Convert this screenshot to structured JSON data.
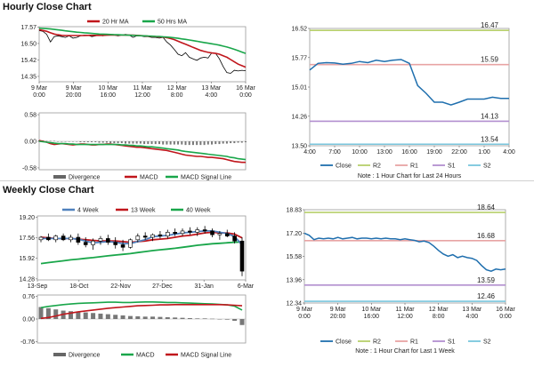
{
  "sections": {
    "hourly_title": "Hourly Close Chart",
    "weekly_title": "Weekly Close Chart"
  },
  "chart_data": [
    {
      "id": "hourly_price",
      "type": "line",
      "title": "",
      "y_ticks": [
        "17.57",
        "16.50",
        "15.42",
        "14.35"
      ],
      "ylim": [
        14.0,
        17.6
      ],
      "x_ticks": [
        [
          "9 Mar",
          "0:00"
        ],
        [
          "9 Mar",
          "20:00"
        ],
        [
          "10 Mar",
          "16:00"
        ],
        [
          "11 Mar",
          "12:00"
        ],
        [
          "12 Mar",
          "8:00"
        ],
        [
          "13 Mar",
          "4:00"
        ],
        [
          "16 Mar",
          "0:00"
        ]
      ],
      "legend": [
        "20 Hr MA",
        "50 Hrs MA"
      ],
      "series": [
        {
          "name": "Close",
          "color": "#000000",
          "values": [
            17.35,
            17.3,
            17.1,
            16.6,
            16.95,
            17.0,
            16.95,
            16.9,
            17.0,
            16.85,
            16.9,
            17.0,
            17.05,
            17.05,
            16.95,
            17.0,
            17.05,
            17.0,
            17.1,
            17.1,
            17.05,
            17.0,
            17.05,
            17.1,
            17.05,
            16.9,
            17.0,
            17.0,
            16.95,
            16.95,
            16.9,
            16.9,
            16.85,
            16.9,
            16.6,
            16.4,
            16.1,
            15.8,
            15.7,
            15.9,
            15.6,
            15.5,
            15.4,
            15.55,
            15.6,
            15.55,
            15.9,
            15.85,
            15.5,
            15.0,
            14.6,
            14.55,
            14.75,
            14.7,
            14.75,
            14.72
          ]
        },
        {
          "name": "20 Hr MA",
          "color": "#c0161c",
          "values": [
            17.4,
            17.35,
            17.3,
            17.2,
            17.12,
            17.07,
            17.03,
            17.02,
            17.02,
            17.02,
            17.02,
            17.02,
            17.02,
            17.03,
            17.03,
            17.03,
            17.03,
            17.03,
            17.04,
            17.05,
            17.05,
            17.05,
            17.05,
            17.05,
            17.05,
            17.04,
            17.03,
            17.02,
            17.0,
            16.98,
            16.96,
            16.95,
            16.93,
            16.92,
            16.88,
            16.82,
            16.75,
            16.65,
            16.55,
            16.45,
            16.35,
            16.25,
            16.15,
            16.05,
            15.98,
            15.92,
            15.88,
            15.85,
            15.8,
            15.7,
            15.6,
            15.45,
            15.3,
            15.15,
            15.05,
            14.95
          ]
        },
        {
          "name": "50 Hrs MA",
          "color": "#19a64a",
          "values": [
            17.5,
            17.49,
            17.47,
            17.45,
            17.42,
            17.39,
            17.36,
            17.33,
            17.3,
            17.27,
            17.24,
            17.22,
            17.2,
            17.18,
            17.16,
            17.14,
            17.12,
            17.11,
            17.1,
            17.09,
            17.08,
            17.07,
            17.06,
            17.05,
            17.04,
            17.03,
            17.02,
            17.01,
            17.0,
            16.99,
            16.98,
            16.97,
            16.96,
            16.94,
            16.92,
            16.9,
            16.87,
            16.84,
            16.8,
            16.77,
            16.73,
            16.69,
            16.65,
            16.6,
            16.56,
            16.52,
            16.48,
            16.44,
            16.39,
            16.33,
            16.27,
            16.2,
            16.12,
            16.03,
            15.94,
            15.85
          ]
        }
      ]
    },
    {
      "id": "hourly_macd",
      "type": "bar+line",
      "y_ticks": [
        "0.58",
        "0.00",
        "-0.58"
      ],
      "ylim": [
        -0.62,
        0.62
      ],
      "legend": [
        "Divergence",
        "MACD",
        "MACD Signal Line"
      ],
      "divergence": [
        0.02,
        0.02,
        0.01,
        0.01,
        0.01,
        0.0,
        0.0,
        -0.01,
        -0.01,
        -0.01,
        -0.01,
        -0.02,
        -0.02,
        -0.02,
        -0.02,
        -0.02,
        -0.03,
        -0.03,
        -0.03,
        -0.04,
        -0.04,
        -0.04,
        -0.04,
        -0.05,
        -0.05,
        -0.05,
        -0.05,
        -0.05,
        -0.06,
        -0.06,
        -0.06,
        -0.06,
        -0.06,
        -0.07,
        -0.07,
        -0.07,
        -0.07,
        -0.07,
        -0.07,
        -0.08,
        -0.08,
        -0.08,
        -0.08,
        -0.08,
        -0.08,
        -0.07,
        -0.07,
        -0.06,
        -0.06,
        -0.05,
        -0.05,
        -0.04,
        -0.04,
        -0.03,
        -0.03,
        -0.02
      ],
      "series": [
        {
          "name": "MACD",
          "color": "#c0161c",
          "values": [
            0.02,
            0.0,
            -0.02,
            -0.05,
            -0.07,
            -0.06,
            -0.05,
            -0.06,
            -0.07,
            -0.08,
            -0.07,
            -0.06,
            -0.06,
            -0.07,
            -0.08,
            -0.08,
            -0.07,
            -0.07,
            -0.06,
            -0.06,
            -0.07,
            -0.08,
            -0.09,
            -0.1,
            -0.11,
            -0.12,
            -0.13,
            -0.13,
            -0.14,
            -0.15,
            -0.16,
            -0.17,
            -0.18,
            -0.19,
            -0.2,
            -0.22,
            -0.24,
            -0.26,
            -0.28,
            -0.3,
            -0.31,
            -0.32,
            -0.33,
            -0.33,
            -0.34,
            -0.35,
            -0.35,
            -0.36,
            -0.37,
            -0.38,
            -0.4,
            -0.42,
            -0.44,
            -0.45,
            -0.46,
            -0.46
          ]
        },
        {
          "name": "MACD Signal Line",
          "color": "#19a64a",
          "values": [
            0.0,
            -0.01,
            -0.02,
            -0.03,
            -0.04,
            -0.05,
            -0.05,
            -0.05,
            -0.06,
            -0.06,
            -0.07,
            -0.07,
            -0.07,
            -0.07,
            -0.07,
            -0.07,
            -0.07,
            -0.07,
            -0.07,
            -0.07,
            -0.07,
            -0.07,
            -0.08,
            -0.08,
            -0.09,
            -0.09,
            -0.1,
            -0.1,
            -0.11,
            -0.12,
            -0.12,
            -0.13,
            -0.14,
            -0.15,
            -0.16,
            -0.17,
            -0.18,
            -0.19,
            -0.21,
            -0.22,
            -0.23,
            -0.24,
            -0.25,
            -0.26,
            -0.27,
            -0.28,
            -0.29,
            -0.3,
            -0.31,
            -0.32,
            -0.33,
            -0.35,
            -0.36,
            -0.38,
            -0.39,
            -0.4
          ]
        }
      ]
    },
    {
      "id": "hourly_pivot",
      "type": "line",
      "y_ticks": [
        "16.52",
        "15.77",
        "15.01",
        "14.26",
        "13.50"
      ],
      "ylim": [
        13.5,
        16.52
      ],
      "x_ticks": [
        "4:00",
        "7:00",
        "10:00",
        "13:00",
        "16:00",
        "19:00",
        "22:00",
        "1:00",
        "4:00"
      ],
      "levels": [
        {
          "name": "R2",
          "value": 16.47,
          "label": "16.47",
          "color": "#b7cf6b"
        },
        {
          "name": "R1",
          "value": 15.59,
          "label": "15.59",
          "color": "#e8a4a4"
        },
        {
          "name": "S1",
          "value": 14.13,
          "label": "14.13",
          "color": "#b28fcf"
        },
        {
          "name": "S2",
          "value": 13.54,
          "label": "13.54",
          "color": "#79c6dd"
        }
      ],
      "close": [
        15.45,
        15.62,
        15.64,
        15.63,
        15.6,
        15.62,
        15.67,
        15.64,
        15.7,
        15.67,
        15.7,
        15.72,
        15.62,
        15.05,
        14.85,
        14.62,
        14.62,
        14.55,
        14.62,
        14.7,
        14.7,
        14.7,
        14.75,
        14.72,
        14.72
      ],
      "legend": [
        "Close",
        "R2",
        "R1",
        "S1",
        "S2"
      ],
      "note": "Note : 1 Hour Chart for Last 24 Hours"
    },
    {
      "id": "weekly_price",
      "type": "candlestick",
      "y_ticks": [
        "19.20",
        "17.56",
        "15.92",
        "14.28"
      ],
      "ylim": [
        14.2,
        19.3
      ],
      "x_ticks": [
        "13-Sep",
        "18-Oct",
        "22-Nov",
        "27-Dec",
        "31-Jan",
        "6-Mar"
      ],
      "legend": [
        "4 Week",
        "13 Week",
        "40 Week"
      ],
      "candles": [
        [
          17.4,
          17.7,
          17.2,
          17.6
        ],
        [
          17.6,
          17.9,
          17.3,
          17.4
        ],
        [
          17.4,
          17.8,
          17.2,
          17.7
        ],
        [
          17.7,
          17.9,
          17.3,
          17.4
        ],
        [
          17.4,
          17.8,
          17.2,
          17.6
        ],
        [
          17.6,
          17.9,
          17.0,
          17.2
        ],
        [
          17.2,
          17.6,
          16.8,
          17.0
        ],
        [
          17.0,
          17.5,
          16.6,
          17.3
        ],
        [
          17.3,
          17.7,
          17.0,
          17.5
        ],
        [
          17.5,
          17.8,
          17.0,
          17.2
        ],
        [
          17.2,
          17.6,
          16.7,
          17.0
        ],
        [
          17.0,
          17.4,
          16.5,
          16.8
        ],
        [
          16.8,
          17.5,
          16.7,
          17.4
        ],
        [
          17.4,
          17.9,
          17.2,
          17.7
        ],
        [
          17.7,
          18.0,
          17.4,
          17.6
        ],
        [
          17.6,
          17.9,
          17.3,
          17.8
        ],
        [
          17.8,
          18.1,
          17.5,
          17.7
        ],
        [
          17.7,
          18.2,
          17.5,
          18.0
        ],
        [
          18.0,
          18.3,
          17.7,
          17.9
        ],
        [
          17.9,
          18.3,
          17.7,
          18.1
        ],
        [
          18.1,
          18.4,
          17.8,
          18.0
        ],
        [
          18.0,
          18.4,
          17.7,
          18.2
        ],
        [
          18.2,
          18.5,
          17.9,
          18.1
        ],
        [
          18.1,
          18.3,
          17.6,
          17.8
        ],
        [
          17.8,
          18.1,
          17.4,
          17.9
        ],
        [
          17.9,
          18.2,
          17.6,
          17.7
        ],
        [
          17.7,
          18.0,
          17.1,
          17.3
        ],
        [
          17.3,
          17.6,
          14.5,
          14.9
        ]
      ],
      "series": [
        {
          "name": "4 Week",
          "color": "#4f81bd",
          "values": [
            17.5,
            17.5,
            17.5,
            17.5,
            17.5,
            17.45,
            17.3,
            17.15,
            17.2,
            17.25,
            17.2,
            17.1,
            17.1,
            17.25,
            17.4,
            17.65,
            17.7,
            17.75,
            17.85,
            17.95,
            18.0,
            18.05,
            18.1,
            18.1,
            18.0,
            17.9,
            17.65,
            17.0
          ]
        },
        {
          "name": "13 Week",
          "color": "#c0161c",
          "values": [
            17.6,
            17.55,
            17.5,
            17.5,
            17.5,
            17.45,
            17.4,
            17.35,
            17.3,
            17.3,
            17.3,
            17.25,
            17.2,
            17.25,
            17.3,
            17.4,
            17.45,
            17.5,
            17.6,
            17.7,
            17.75,
            17.85,
            17.95,
            18.0,
            17.95,
            17.95,
            17.85,
            17.55
          ]
        },
        {
          "name": "40 Week",
          "color": "#19a64a",
          "values": [
            15.5,
            15.58,
            15.65,
            15.72,
            15.8,
            15.86,
            15.92,
            15.98,
            16.05,
            16.12,
            16.18,
            16.24,
            16.3,
            16.38,
            16.46,
            16.54,
            16.6,
            16.66,
            16.72,
            16.8,
            16.88,
            16.96,
            17.02,
            17.08,
            17.12,
            17.16,
            17.2,
            17.22
          ]
        }
      ]
    },
    {
      "id": "weekly_macd",
      "type": "bar+line",
      "y_ticks": [
        "0.76",
        "0.00",
        "-0.76"
      ],
      "ylim": [
        -0.8,
        0.8
      ],
      "legend": [
        "Divergence",
        "MACD",
        "MACD Signal Line"
      ],
      "divergence": [
        0.4,
        0.36,
        0.32,
        0.28,
        0.26,
        0.24,
        0.22,
        0.2,
        0.18,
        0.16,
        0.14,
        0.12,
        0.1,
        0.09,
        0.08,
        0.08,
        0.07,
        0.06,
        0.05,
        0.04,
        0.03,
        0.02,
        0.02,
        0.01,
        0.0,
        -0.02,
        -0.06,
        -0.2
      ],
      "series": [
        {
          "name": "MACD",
          "color": "#19a64a",
          "values": [
            0.38,
            0.42,
            0.45,
            0.48,
            0.5,
            0.52,
            0.53,
            0.54,
            0.55,
            0.56,
            0.56,
            0.55,
            0.55,
            0.56,
            0.57,
            0.57,
            0.56,
            0.55,
            0.55,
            0.54,
            0.53,
            0.52,
            0.51,
            0.5,
            0.49,
            0.47,
            0.43,
            0.3
          ]
        },
        {
          "name": "MACD Signal Line",
          "color": "#c0161c",
          "values": [
            0.02,
            0.05,
            0.1,
            0.16,
            0.2,
            0.24,
            0.27,
            0.3,
            0.33,
            0.36,
            0.38,
            0.4,
            0.42,
            0.44,
            0.45,
            0.46,
            0.47,
            0.47,
            0.48,
            0.48,
            0.48,
            0.48,
            0.48,
            0.48,
            0.48,
            0.47,
            0.46,
            0.44
          ]
        }
      ]
    },
    {
      "id": "weekly_pivot",
      "type": "line",
      "y_ticks": [
        "18.83",
        "17.20",
        "15.58",
        "13.96",
        "12.34"
      ],
      "ylim": [
        12.34,
        18.83
      ],
      "x_ticks": [
        [
          "9 Mar",
          "0:00"
        ],
        [
          "9 Mar",
          "20:00"
        ],
        [
          "10 Mar",
          "16:00"
        ],
        [
          "11 Mar",
          "12:00"
        ],
        [
          "12 Mar",
          "8:00"
        ],
        [
          "13 Mar",
          "4:00"
        ],
        [
          "16 Mar",
          "0:00"
        ]
      ],
      "levels": [
        {
          "name": "R2",
          "value": 18.64,
          "label": "18.64",
          "color": "#b7cf6b"
        },
        {
          "name": "R1",
          "value": 16.68,
          "label": "16.68",
          "color": "#e8a4a4"
        },
        {
          "name": "S1",
          "value": 13.59,
          "label": "13.59",
          "color": "#b28fcf"
        },
        {
          "name": "S2",
          "value": 12.46,
          "label": "12.46",
          "color": "#79c6dd"
        }
      ],
      "close": [
        17.2,
        17.05,
        16.75,
        16.85,
        16.8,
        16.85,
        16.8,
        16.9,
        16.8,
        16.85,
        16.9,
        16.8,
        16.85,
        16.85,
        16.8,
        16.85,
        16.8,
        16.85,
        16.8,
        16.8,
        16.75,
        16.8,
        16.75,
        16.7,
        16.6,
        16.65,
        16.55,
        16.3,
        16.0,
        15.75,
        15.6,
        15.7,
        15.5,
        15.6,
        15.5,
        15.45,
        15.3,
        14.95,
        14.65,
        14.55,
        14.7,
        14.65,
        14.7
      ],
      "legend": [
        "Close",
        "R2",
        "R1",
        "S1",
        "S2"
      ],
      "note": "Note : 1 Hour Chart for Last 1 Week"
    }
  ]
}
